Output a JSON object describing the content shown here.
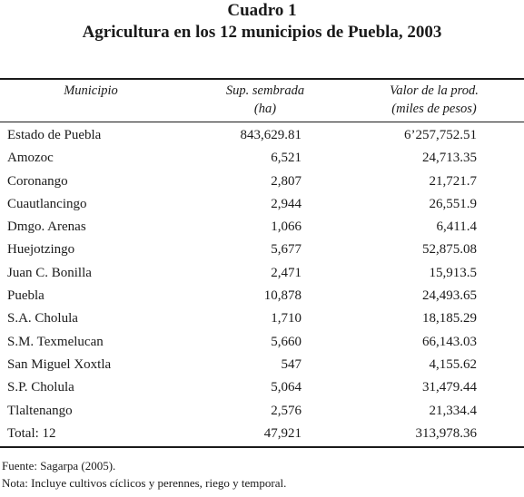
{
  "title": {
    "line1": "Cuadro 1",
    "line2": "Agricultura en los 12 municipios de Puebla, 2003"
  },
  "headers": {
    "municipio": "Municipio",
    "sup_line1": "Sup. sembrada",
    "sup_line2": "(ha)",
    "valor_line1": "Valor de la prod.",
    "valor_line2": "(miles de pesos)"
  },
  "rows": [
    {
      "municipio": "Estado de Puebla",
      "sup": "843,629.81",
      "valor": "6’257,752.51"
    },
    {
      "municipio": "Amozoc",
      "sup": "6,521",
      "valor": "24,713.35"
    },
    {
      "municipio": "Coronango",
      "sup": "2,807",
      "valor": "21,721.7"
    },
    {
      "municipio": "Cuautlancingo",
      "sup": "2,944",
      "valor": "26,551.9"
    },
    {
      "municipio": "Dmgo. Arenas",
      "sup": "1,066",
      "valor": "6,411.4"
    },
    {
      "municipio": "Huejotzingo",
      "sup": "5,677",
      "valor": "52,875.08"
    },
    {
      "municipio": "Juan C. Bonilla",
      "sup": "2,471",
      "valor": "15,913.5"
    },
    {
      "municipio": "Puebla",
      "sup": "10,878",
      "valor": "24,493.65"
    },
    {
      "municipio": "S.A. Cholula",
      "sup": "1,710",
      "valor": "18,185.29"
    },
    {
      "municipio": "S.M. Texmelucan",
      "sup": "5,660",
      "valor": "66,143.03"
    },
    {
      "municipio": "San Miguel Xoxtla",
      "sup": "547",
      "valor": "4,155.62"
    },
    {
      "municipio": "S.P. Cholula",
      "sup": "5,064",
      "valor": "31,479.44"
    },
    {
      "municipio": "Tlaltenango",
      "sup": "2,576",
      "valor": "21,334.4"
    },
    {
      "municipio": "Total: 12",
      "sup": "47,921",
      "valor": "313,978.36"
    }
  ],
  "notes": {
    "source": "Fuente: Sagarpa (2005).",
    "nota": "Nota: Incluye cultivos cíclicos y perennes, riego y temporal."
  }
}
